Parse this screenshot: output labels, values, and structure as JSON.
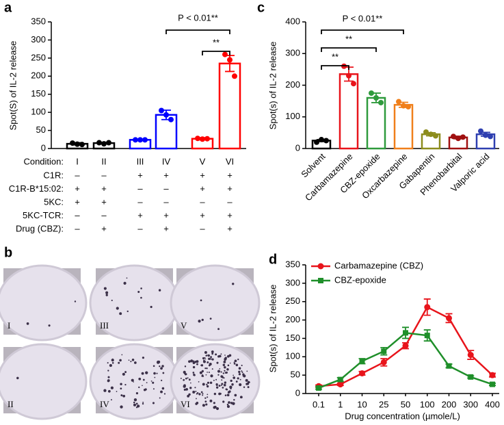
{
  "chart_data": [
    {
      "type": "bar",
      "panel": "a",
      "ylabel": "Spot(S) of IL-2 release",
      "xlabel": "Condition:",
      "categories": [
        "I",
        "II",
        "III",
        "IV",
        "V",
        "VI"
      ],
      "values": [
        13,
        15,
        24,
        93,
        27,
        235
      ],
      "errors": [
        3,
        2,
        2,
        13,
        3,
        22
      ],
      "points": [
        [
          15,
          12,
          11
        ],
        [
          16,
          13,
          16
        ],
        [
          24,
          24,
          24
        ],
        [
          105,
          93,
          80
        ],
        [
          28,
          26,
          27
        ],
        [
          260,
          245,
          200
        ]
      ],
      "colors": [
        "#000000",
        "#000000",
        "#0000ff",
        "#0000ff",
        "#ff0000",
        "#ff0000"
      ],
      "ylim": [
        0,
        350
      ],
      "yticks": [
        0,
        50,
        100,
        150,
        200,
        250,
        300,
        350
      ],
      "annotations": [
        "P < 0.01**",
        "**"
      ]
    },
    {
      "type": "bar",
      "panel": "c",
      "ylabel": "Spot(s) of IL-2 release",
      "categories": [
        "Solvent",
        "Carbamazepine",
        "CBZ-epoxide",
        "Oxcarbazepine",
        "Gabapentin",
        "Phenobarbital",
        "Valporic acid"
      ],
      "values": [
        25,
        235,
        160,
        138,
        45,
        35,
        45
      ],
      "errors": [
        3,
        22,
        15,
        8,
        5,
        4,
        6
      ],
      "points": [
        [
          20,
          28,
          25
        ],
        [
          260,
          230,
          205
        ],
        [
          175,
          160,
          145
        ],
        [
          148,
          135,
          132
        ],
        [
          52,
          45,
          40
        ],
        [
          38,
          32,
          36
        ],
        [
          55,
          42,
          38
        ]
      ],
      "colors": [
        "#000000",
        "#e8141b",
        "#2e9a3c",
        "#f07f1a",
        "#8c8c1c",
        "#a01010",
        "#2e3fb0"
      ],
      "ylim": [
        0,
        400
      ],
      "yticks": [
        0,
        100,
        200,
        300,
        400
      ],
      "annotations": [
        "P < 0.01**",
        "**",
        "**"
      ]
    },
    {
      "type": "line",
      "panel": "d",
      "ylabel": "Spot(s) of IL-2 release",
      "xlabel": "Drug concentration (µmole/L)",
      "categories": [
        "0.1",
        "1",
        "10",
        "25",
        "50",
        "100",
        "200",
        "300",
        "400"
      ],
      "series": [
        {
          "name": "Carbamazepine (CBZ)",
          "color": "#e8141b",
          "values": [
            20,
            25,
            55,
            85,
            130,
            235,
            205,
            105,
            50
          ],
          "errors": [
            3,
            3,
            5,
            10,
            8,
            22,
            12,
            12,
            5
          ]
        },
        {
          "name": "CBZ-epoxide",
          "color": "#1f8f2a",
          "values": [
            15,
            38,
            88,
            115,
            165,
            158,
            75,
            45,
            25
          ],
          "errors": [
            3,
            5,
            7,
            10,
            15,
            15,
            5,
            3,
            3
          ]
        }
      ],
      "ylim": [
        0,
        350
      ],
      "yticks": [
        0,
        50,
        100,
        150,
        200,
        250,
        300,
        350
      ],
      "legend": "upper left"
    }
  ],
  "condition_table": {
    "rows": [
      {
        "label": "C1R:",
        "cells": [
          "–",
          "–",
          "+",
          "+",
          "+",
          "+"
        ]
      },
      {
        "label": "C1R-B*15:02:",
        "cells": [
          "+",
          "+",
          "–",
          "–",
          "+",
          "+"
        ]
      },
      {
        "label": "5KC:",
        "cells": [
          "+",
          "+",
          "–",
          "–",
          "–",
          "–"
        ]
      },
      {
        "label": "5KC-TCR:",
        "cells": [
          "–",
          "–",
          "+",
          "+",
          "+",
          "+"
        ]
      },
      {
        "label": "Drug (CBZ):",
        "cells": [
          "–",
          "+",
          "–",
          "+",
          "–",
          "+"
        ]
      }
    ]
  },
  "panel_b": {
    "panel": "b",
    "wells": [
      "I",
      "III",
      "V",
      "II",
      "IV",
      "VI"
    ]
  }
}
